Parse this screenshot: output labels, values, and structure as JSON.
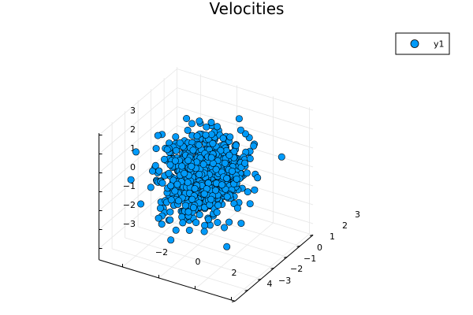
{
  "chart_data": {
    "type": "scatter",
    "projection": "3d",
    "title": "Velocities",
    "xlabel": "",
    "ylabel": "",
    "zlabel": "",
    "grid": true,
    "legend_position": "top-right",
    "x_range": [
      -3.3,
      4.2
    ],
    "y_range": [
      -3.0,
      3.0
    ],
    "z_range": [
      -3.6,
      3.1
    ],
    "x_ticks": [
      -2,
      0,
      2,
      4
    ],
    "y_ticks": [
      -3,
      -2,
      -1,
      0,
      1,
      2,
      3
    ],
    "z_ticks": [
      -3,
      -2,
      -1,
      0,
      1,
      2,
      3
    ],
    "x_tick_labels": [
      "−2",
      "0",
      "2",
      "4"
    ],
    "y_tick_labels": [
      "−3",
      "−2",
      "−1",
      "0",
      "1",
      "2",
      "3"
    ],
    "z_tick_labels": [
      "−3",
      "−2",
      "−1",
      "0",
      "1",
      "2",
      "3"
    ],
    "series": [
      {
        "name": "y1",
        "color": "#009af9",
        "edge_color": "#000000",
        "sample_size": 1000,
        "distribution": "standard-normal",
        "points": [
          [
            -2.17,
            2.15,
            1.2
          ],
          [
            -1.7,
            -0.7,
            2.1
          ],
          [
            1.8,
            1.5,
            1.0
          ],
          [
            2.2,
            -1.6,
            -0.3
          ],
          [
            -0.6,
            1.9,
            -1.5
          ],
          [
            0.9,
            -2.0,
            2.3
          ],
          [
            2.9,
            2.4,
            0.5
          ],
          [
            -1.2,
            0.4,
            -2.4
          ],
          [
            1.3,
            2.6,
            -1.0
          ],
          [
            -2.4,
            -1.8,
            0.2
          ],
          [
            0.4,
            0.1,
            2.7
          ],
          [
            1.6,
            -0.2,
            -2.1
          ],
          [
            -0.2,
            -2.5,
            -1.1
          ],
          [
            2.5,
            0.8,
            1.9
          ],
          [
            -1.9,
            1.1,
            -0.9
          ],
          [
            0.7,
            2.2,
            2.0
          ]
        ]
      }
    ]
  }
}
